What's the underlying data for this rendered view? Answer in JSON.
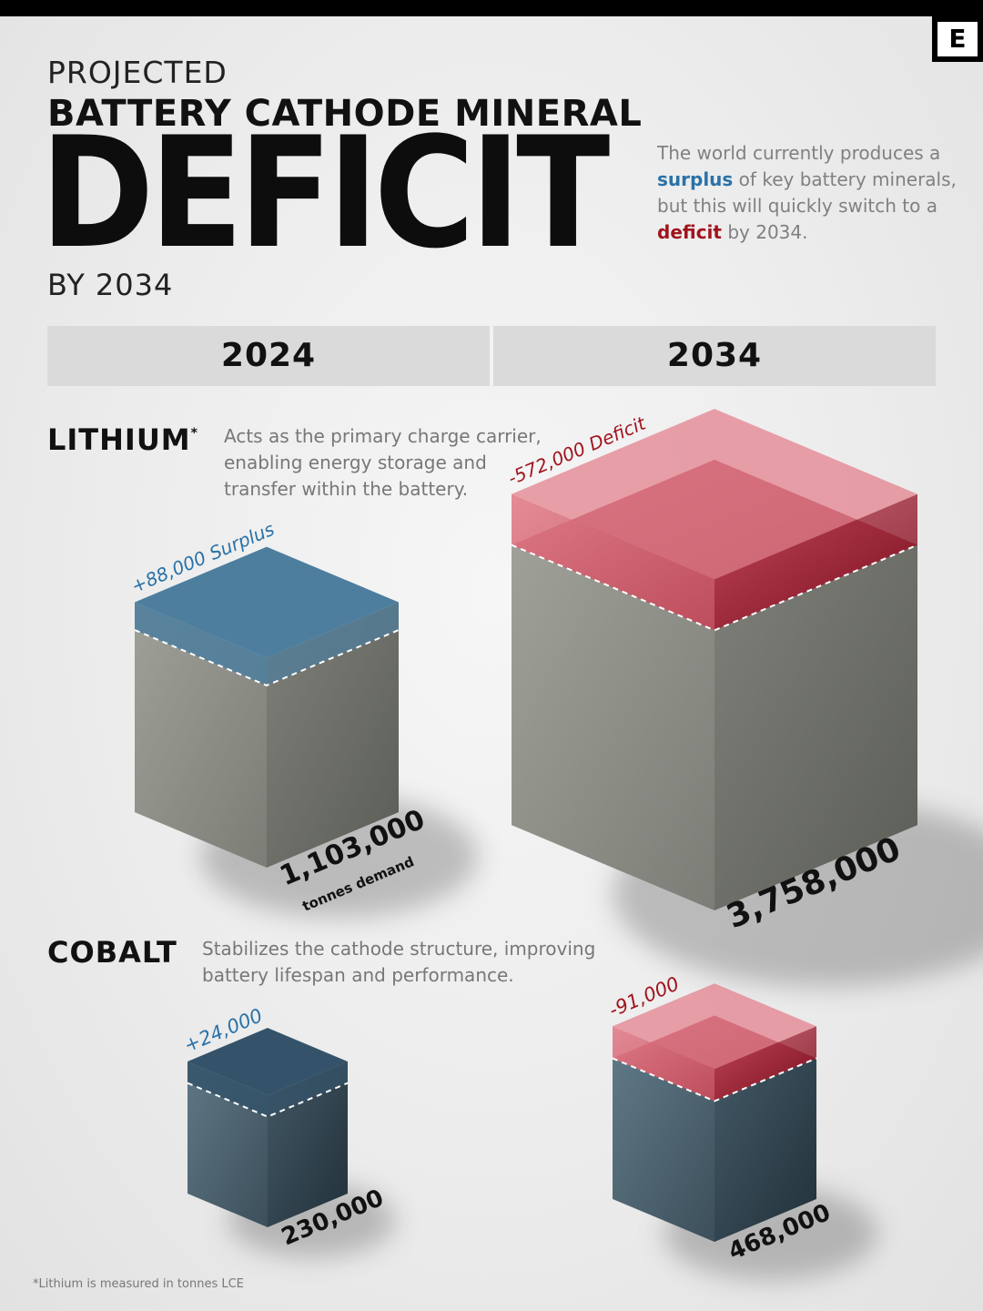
{
  "header": {
    "kicker": "PROJECTED",
    "title_line1": "BATTERY CATHODE MINERAL",
    "title_big": "DEFICIT",
    "byline": "BY 2034",
    "logo": "E"
  },
  "intro": {
    "part1": "The world currently produces a ",
    "surplus_word": "surplus",
    "part2": " of key battery minerals, but this will quickly switch to a ",
    "deficit_word": "deficit",
    "part3": " by 2034."
  },
  "columns": [
    "2024",
    "2034"
  ],
  "minerals": [
    {
      "name": "LITHIUM",
      "asterisk": "*",
      "description": [
        "Acts as the primary charge carrier,",
        "enabling energy storage and",
        "transfer within the battery."
      ]
    },
    {
      "name": "COBALT",
      "description": [
        "Stabilizes the cathode structure, improving",
        "battery lifespan and performance."
      ]
    }
  ],
  "chart_data": {
    "type": "isometric-cube",
    "unit_note": "tonnes demand",
    "columns": [
      "2024",
      "2034"
    ],
    "series": [
      {
        "name": "LITHIUM",
        "points": [
          {
            "year": "2024",
            "demand": 1103000,
            "demand_label": "1,103,000",
            "sublabel": "tonnes demand",
            "balance": 88000,
            "balance_label": "+88,000 Surplus",
            "status": "surplus"
          },
          {
            "year": "2034",
            "demand": 3758000,
            "demand_label": "3,758,000",
            "balance": -572000,
            "balance_label": "-572,000 Deficit",
            "status": "deficit"
          }
        ]
      },
      {
        "name": "COBALT",
        "points": [
          {
            "year": "2024",
            "demand": 230000,
            "demand_label": "230,000",
            "balance": 24000,
            "balance_label": "+24,000",
            "status": "surplus"
          },
          {
            "year": "2034",
            "demand": 468000,
            "demand_label": "468,000",
            "balance": -91000,
            "balance_label": "-91,000",
            "status": "deficit"
          }
        ]
      }
    ],
    "colors": {
      "surplus_top": "#4d7e9e",
      "surplus_label": "#2a72a8",
      "deficit_slab": "#e3828e",
      "deficit_label": "#a0141e",
      "lithium_stone": "#8e9088",
      "cobalt_stone": "#4d6572"
    }
  },
  "footnote": "*Lithium is measured in tonnes LCE"
}
